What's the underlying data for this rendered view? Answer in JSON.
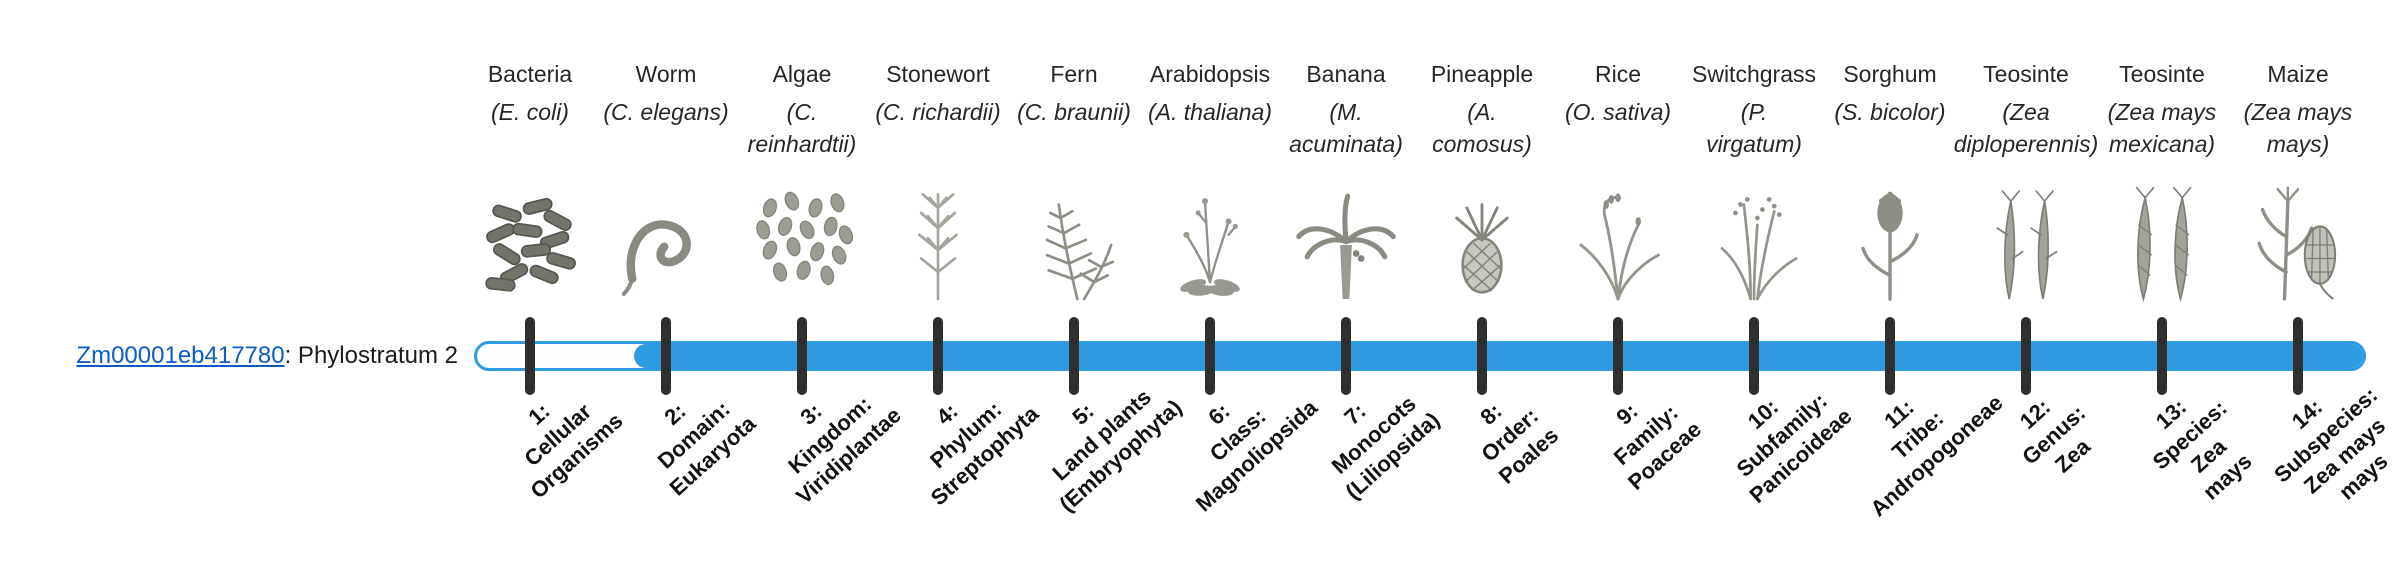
{
  "gene_label": {
    "id_text": "Zm00001eb417780",
    "suffix": ": Phylostratum 2",
    "phylostratum": "Phylostratum 2"
  },
  "colors": {
    "bar_blue": "#2E9BE3",
    "bar_empty": "#FDFEFF",
    "tick_dark": "#2F2F2F",
    "link_blue": "#0B5CC4",
    "text_dark": "#262626"
  },
  "bar": {
    "total_strata": 14,
    "filled_from_stratum": 2
  },
  "strata": [
    {
      "number": "1",
      "organism": "Bacteria",
      "sci_lines": [
        "(E. coli)"
      ],
      "icon": "bacteria",
      "rank_lines": [
        "1:",
        "Cellular",
        "Organisms"
      ]
    },
    {
      "number": "2",
      "organism": "Worm",
      "sci_lines": [
        "(C. elegans)"
      ],
      "icon": "worm",
      "rank_lines": [
        "2:",
        "Domain:",
        "Eukaryota"
      ]
    },
    {
      "number": "3",
      "organism": "Algae",
      "sci_lines": [
        "(C.",
        "reinhardtii)"
      ],
      "icon": "algae",
      "rank_lines": [
        "3:",
        "Kingdom:",
        "Viridiplantae"
      ]
    },
    {
      "number": "4",
      "organism": "Stonewort",
      "sci_lines": [
        "(C. richardii)"
      ],
      "icon": "stonewort",
      "rank_lines": [
        "4:",
        "Phylum:",
        "Streptophyta"
      ]
    },
    {
      "number": "5",
      "organism": "Fern",
      "sci_lines": [
        "(C. braunii)"
      ],
      "icon": "fern",
      "rank_lines": [
        "5:",
        "Land plants",
        "(Embryophyta)"
      ]
    },
    {
      "number": "6",
      "organism": "Arabidopsis",
      "sci_lines": [
        "(A. thaliana)"
      ],
      "icon": "arabidopsis",
      "rank_lines": [
        "6:",
        "Class:",
        "Magnoliopsida"
      ]
    },
    {
      "number": "7",
      "organism": "Banana",
      "sci_lines": [
        "(M.",
        "acuminata)"
      ],
      "icon": "banana",
      "rank_lines": [
        "7:",
        "Monocots",
        "(Liliopsida)"
      ]
    },
    {
      "number": "8",
      "organism": "Pineapple",
      "sci_lines": [
        "(A.",
        "comosus)"
      ],
      "icon": "pineapple",
      "rank_lines": [
        "8:",
        "Order:",
        "Poales"
      ]
    },
    {
      "number": "9",
      "organism": "Rice",
      "sci_lines": [
        "(O. sativa)"
      ],
      "icon": "rice",
      "rank_lines": [
        "9:",
        "Family:",
        "Poaceae"
      ]
    },
    {
      "number": "10",
      "organism": "Switchgrass",
      "sci_lines": [
        "(P.",
        "virgatum)"
      ],
      "icon": "switchgrass",
      "rank_lines": [
        "10:",
        "Subfamily:",
        "Panicoideae"
      ]
    },
    {
      "number": "11",
      "organism": "Sorghum",
      "sci_lines": [
        "(S. bicolor)"
      ],
      "icon": "sorghum",
      "rank_lines": [
        "11:",
        "Tribe:",
        "Andropogoneae"
      ]
    },
    {
      "number": "12",
      "organism": "Teosinte",
      "sci_lines": [
        "(Zea",
        "diploperennis)"
      ],
      "icon": "teosinte-diploperennis",
      "rank_lines": [
        "12:",
        "Genus:",
        "Zea"
      ]
    },
    {
      "number": "13",
      "organism": "Teosinte",
      "sci_lines": [
        "(Zea mays",
        "mexicana)"
      ],
      "icon": "teosinte-mexicana",
      "rank_lines": [
        "13:",
        "Species:",
        "Zea",
        "mays"
      ]
    },
    {
      "number": "14",
      "organism": "Maize",
      "sci_lines": [
        "(Zea mays",
        "mays)"
      ],
      "icon": "maize",
      "rank_lines": [
        "14:",
        "Subspecies:",
        "Zea mays",
        "mays"
      ]
    }
  ]
}
